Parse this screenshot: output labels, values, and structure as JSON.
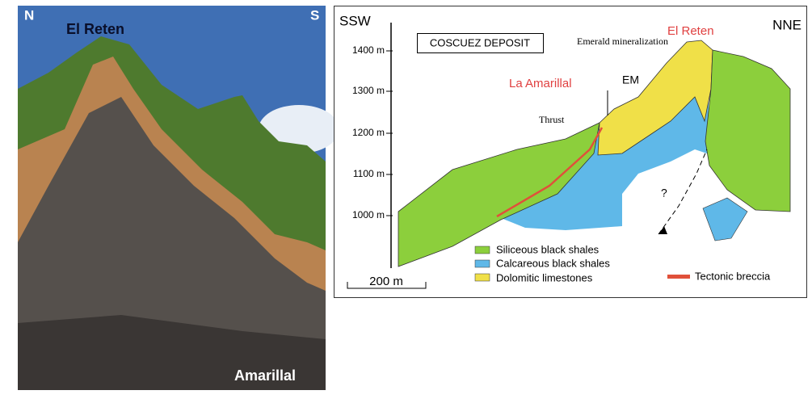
{
  "photo": {
    "north": "N",
    "south": "S",
    "peak_label": "El Reten",
    "bottom_label": "Amarillal"
  },
  "section": {
    "left_direction": "SSW",
    "right_direction": "NNE",
    "title": "COSCUEZ DEPOSIT",
    "peak_label": "El Reten",
    "mineralization_label": "Emerald mineralization",
    "em_label": "EM",
    "amarillal_label": "La Amarillal",
    "thrust_label": "Thrust",
    "unknown_label": "?",
    "elevations": [
      "1400 m",
      "1300 m",
      "1200 m",
      "1100 m",
      "1000 m"
    ],
    "legend": [
      "Siliceous black shales",
      "Calcareous black shales",
      "Dolomitic limestones",
      "Tectonic breccia"
    ],
    "scale": "200 m"
  }
}
